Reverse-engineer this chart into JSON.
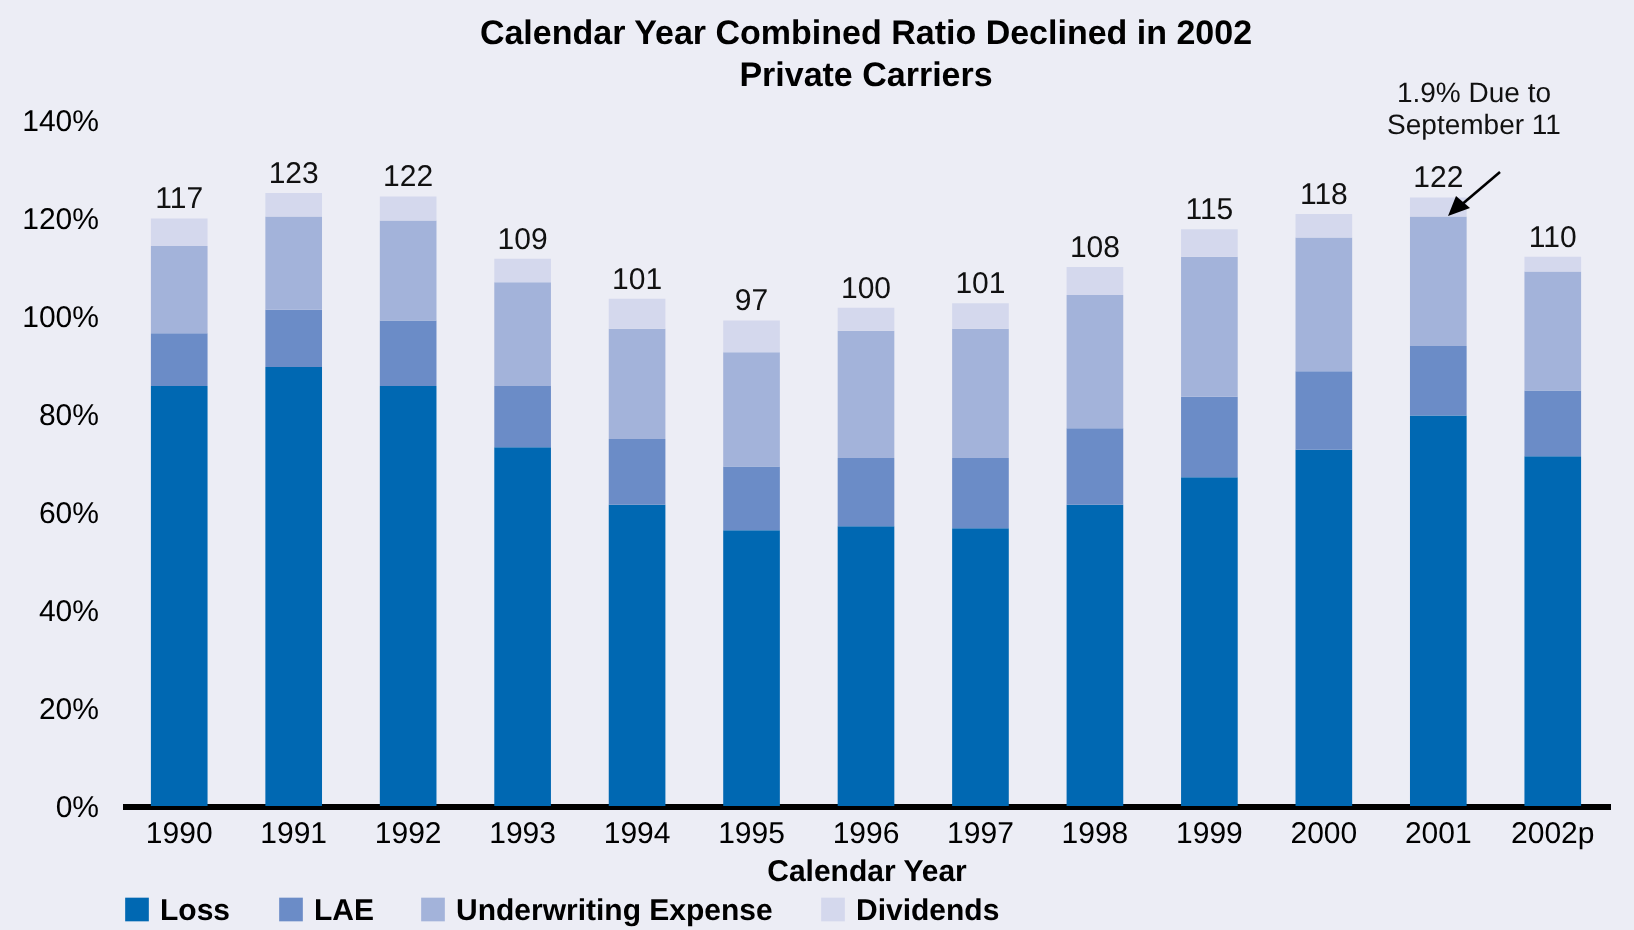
{
  "chart_data": {
    "type": "bar",
    "title": "Calendar Year Combined Ratio Declined in 2002",
    "subtitle": "Private Carriers",
    "xlabel": "Calendar Year",
    "categories": [
      "1990",
      "1991",
      "1992",
      "1993",
      "1994",
      "1995",
      "1996",
      "1997",
      "1998",
      "1999",
      "2000",
      "2001",
      "2002p"
    ],
    "stacked": true,
    "series": [
      {
        "name": "Loss",
        "color": "#0068b2",
        "values": [
          85.7,
          89.6,
          85.7,
          73.2,
          61.5,
          56.3,
          57.1,
          56.7,
          61.5,
          67.1,
          72.7,
          79.7,
          71.4
        ]
      },
      {
        "name": "LAE",
        "color": "#6b8cc7",
        "values": [
          10.8,
          11.7,
          13.4,
          12.5,
          13.4,
          13.0,
          13.9,
          14.3,
          15.6,
          16.4,
          16.0,
          14.2,
          13.4
        ]
      },
      {
        "name": "Underwriting Expense",
        "color": "#a3b3da",
        "values": [
          17.8,
          19.0,
          20.4,
          21.2,
          22.5,
          23.3,
          26.0,
          26.4,
          27.2,
          28.6,
          27.3,
          26.4,
          24.3
        ]
      },
      {
        "name": "Dividends",
        "color": "#d4d8ed",
        "values": [
          5.6,
          4.8,
          4.9,
          4.8,
          6.1,
          6.5,
          4.7,
          5.2,
          5.7,
          5.6,
          4.8,
          3.9,
          3.0
        ]
      }
    ],
    "totals": [
      null,
      "123",
      "122",
      null,
      "101",
      "97",
      "100",
      "101",
      "108",
      null,
      null,
      "122",
      "110"
    ],
    "ylim": [
      0,
      140
    ],
    "yticks": [
      {
        "value": 0,
        "label": "0%"
      },
      {
        "value": 20,
        "label": "20%"
      },
      {
        "value": 40,
        "label": "40%"
      },
      {
        "value": 60,
        "label": "60%"
      },
      {
        "value": 80,
        "label": "80%"
      },
      {
        "value": 100,
        "label": "100%"
      },
      {
        "value": 120,
        "label": "120%"
      },
      {
        "value": 140,
        "label": "140%"
      }
    ],
    "grid": false,
    "legend": "bottom",
    "annotations": [
      "1.9% Due to September 11",
      {
        "text": "117",
        "x": "1990",
        "y": 119.9
      },
      {
        "text": "109",
        "x": "1993",
        "y": 111.7
      },
      {
        "text": "115",
        "x": "1999",
        "y": 117.7
      },
      {
        "text": "118",
        "x": "2000",
        "y": 120.8
      }
    ]
  }
}
